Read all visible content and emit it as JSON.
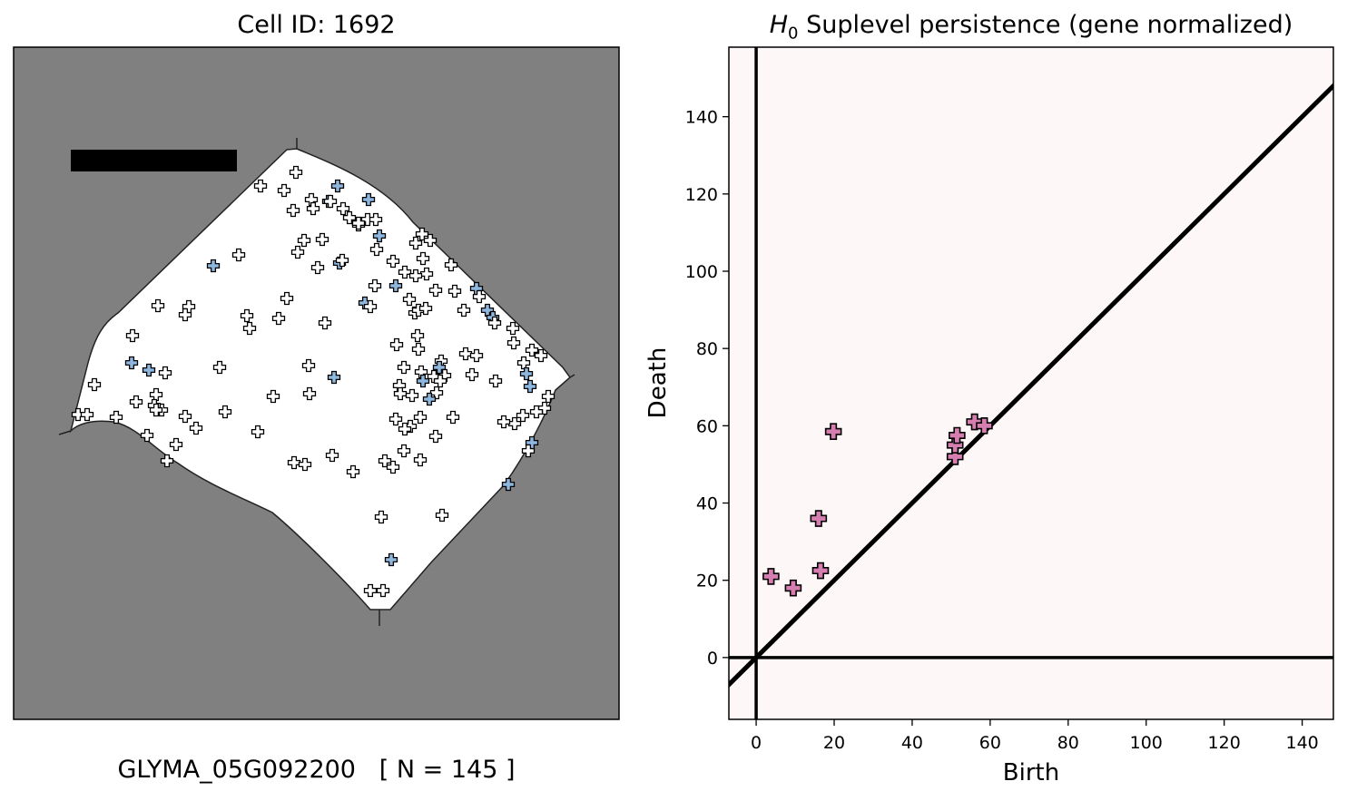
{
  "left_panel": {
    "title": "Cell ID: 1692",
    "caption": "GLYMA_05G092200   [ N = 145 ]",
    "colors": {
      "background": "#808080",
      "cell": "#ffffff",
      "scale_bar": "#000000",
      "marker_white": "#ffffff",
      "marker_blue": "#8fb8e0"
    }
  },
  "chart_data": {
    "type": "scatter",
    "title_symbol": "H",
    "title_subscript": "0",
    "title_rest": " Suplevel persistence (gene normalized)",
    "xlabel": "Birth",
    "ylabel": "Death",
    "xlim": [
      -7,
      148
    ],
    "ylim": [
      -16,
      158
    ],
    "xticks": [
      0,
      20,
      40,
      60,
      80,
      100,
      120,
      140
    ],
    "yticks": [
      0,
      20,
      40,
      60,
      80,
      100,
      120,
      140
    ],
    "diagonal": true,
    "zero_lines": true,
    "marker_color": "#d77eb0",
    "background": "#fdf8f7",
    "points": [
      {
        "x": 3.8,
        "y": 21.0
      },
      {
        "x": 9.5,
        "y": 18.0
      },
      {
        "x": 16.0,
        "y": 36.0
      },
      {
        "x": 16.5,
        "y": 22.5
      },
      {
        "x": 19.8,
        "y": 58.5
      },
      {
        "x": 51.0,
        "y": 52.0
      },
      {
        "x": 51.0,
        "y": 55.0
      },
      {
        "x": 51.5,
        "y": 57.5
      },
      {
        "x": 56.0,
        "y": 61.0
      },
      {
        "x": 58.5,
        "y": 60.0
      }
    ]
  }
}
